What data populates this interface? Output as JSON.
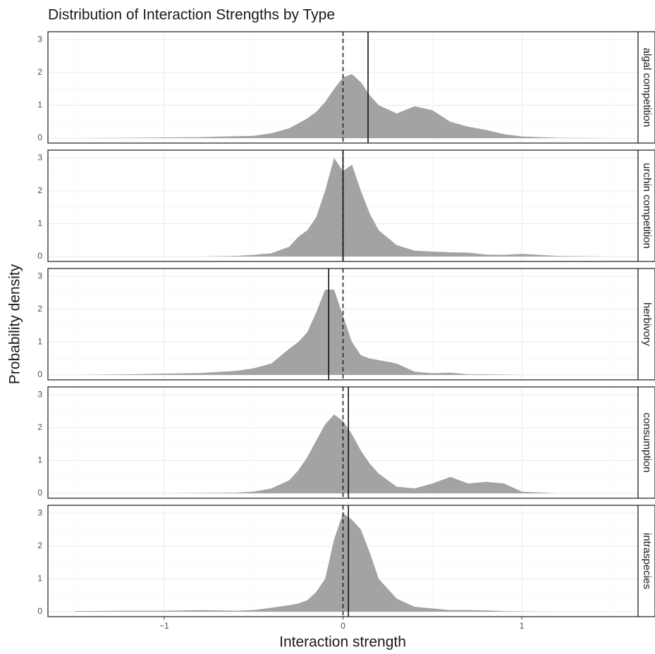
{
  "title": "Distribution of Interaction Strengths by Type",
  "x_label": "Interaction strength",
  "y_label": "Probability density",
  "chart_data": [
    {
      "type": "area",
      "strip": "algal competition",
      "color": "#a3a3a6",
      "x": [
        -1.5,
        -1.2,
        -1,
        -0.8,
        -0.6,
        -0.5,
        -0.4,
        -0.3,
        -0.25,
        -0.2,
        -0.15,
        -0.1,
        -0.05,
        0,
        0.05,
        0.1,
        0.15,
        0.2,
        0.3,
        0.4,
        0.5,
        0.6,
        0.7,
        0.8,
        0.9,
        1,
        1.2,
        1.5
      ],
      "values": [
        0,
        0.01,
        0.02,
        0.03,
        0.06,
        0.07,
        0.15,
        0.3,
        0.45,
        0.6,
        0.8,
        1.1,
        1.5,
        1.85,
        1.95,
        1.7,
        1.3,
        1.0,
        0.75,
        0.97,
        0.85,
        0.5,
        0.35,
        0.25,
        0.12,
        0.05,
        0.01,
        0
      ],
      "mean": 0.14,
      "reference": 0,
      "xlim": [
        -1.65,
        1.65
      ],
      "xticks": [
        {
          "value": -1,
          "label": "−1"
        },
        0,
        1
      ],
      "ylim": [
        -0.15,
        3.24
      ],
      "yticks": [
        0,
        1,
        2,
        3
      ],
      "grid": true
    },
    {
      "type": "area",
      "strip": "urchin competition",
      "color": "#a3a3a6",
      "x": [
        -1.5,
        -1.2,
        -1,
        -0.8,
        -0.6,
        -0.5,
        -0.4,
        -0.3,
        -0.25,
        -0.2,
        -0.15,
        -0.1,
        -0.05,
        0,
        0.05,
        0.1,
        0.15,
        0.2,
        0.3,
        0.4,
        0.5,
        0.6,
        0.7,
        0.8,
        0.9,
        1,
        1.2,
        1.5
      ],
      "values": [
        0,
        0,
        0,
        0,
        0.02,
        0.05,
        0.1,
        0.3,
        0.6,
        0.8,
        1.2,
        2.0,
        3.0,
        2.6,
        2.8,
        2.0,
        1.3,
        0.8,
        0.35,
        0.18,
        0.15,
        0.13,
        0.12,
        0.06,
        0.05,
        0.08,
        0.02,
        0
      ],
      "mean": 0.0,
      "reference": 0,
      "xlim": [
        -1.65,
        1.65
      ],
      "xticks": [
        {
          "value": -1,
          "label": "−1"
        },
        0,
        1
      ],
      "ylim": [
        -0.15,
        3.24
      ],
      "yticks": [
        0,
        1,
        2,
        3
      ],
      "grid": true
    },
    {
      "type": "area",
      "strip": "herbivory",
      "color": "#a3a3a6",
      "x": [
        -1.5,
        -1.2,
        -1,
        -0.8,
        -0.6,
        -0.5,
        -0.4,
        -0.3,
        -0.25,
        -0.2,
        -0.15,
        -0.1,
        -0.05,
        0,
        0.05,
        0.1,
        0.15,
        0.2,
        0.3,
        0.4,
        0.5,
        0.6,
        0.7,
        0.8,
        0.9,
        1,
        1.2,
        1.5
      ],
      "values": [
        0,
        0.02,
        0.04,
        0.06,
        0.12,
        0.2,
        0.35,
        0.8,
        1.0,
        1.3,
        1.9,
        2.6,
        2.6,
        1.8,
        1.0,
        0.6,
        0.5,
        0.45,
        0.35,
        0.1,
        0.05,
        0.07,
        0.02,
        0.02,
        0.01,
        0,
        0,
        0
      ],
      "mean": -0.08,
      "reference": 0,
      "xlim": [
        -1.65,
        1.65
      ],
      "xticks": [
        {
          "value": -1,
          "label": "−1"
        },
        0,
        1
      ],
      "ylim": [
        -0.15,
        3.24
      ],
      "yticks": [
        0,
        1,
        2,
        3
      ],
      "grid": true
    },
    {
      "type": "area",
      "strip": "consumption",
      "color": "#a3a3a6",
      "x": [
        -1.5,
        -1.2,
        -1,
        -0.8,
        -0.6,
        -0.5,
        -0.4,
        -0.3,
        -0.25,
        -0.2,
        -0.15,
        -0.1,
        -0.05,
        0,
        0.05,
        0.1,
        0.15,
        0.2,
        0.3,
        0.4,
        0.5,
        0.6,
        0.7,
        0.8,
        0.9,
        1,
        1.2,
        1.5
      ],
      "values": [
        0,
        0,
        0,
        0.01,
        0.02,
        0.05,
        0.15,
        0.4,
        0.7,
        1.1,
        1.6,
        2.1,
        2.4,
        2.2,
        1.8,
        1.3,
        0.9,
        0.6,
        0.2,
        0.15,
        0.3,
        0.5,
        0.3,
        0.35,
        0.3,
        0.05,
        0,
        0
      ],
      "mean": 0.03,
      "reference": 0,
      "xlim": [
        -1.65,
        1.65
      ],
      "xticks": [
        {
          "value": -1,
          "label": "−1"
        },
        0,
        1
      ],
      "ylim": [
        -0.15,
        3.24
      ],
      "yticks": [
        0,
        1,
        2,
        3
      ],
      "grid": true
    },
    {
      "type": "area",
      "strip": "intraspecies",
      "color": "#a3a3a6",
      "x": [
        -1.5,
        -1.2,
        -1,
        -0.8,
        -0.6,
        -0.5,
        -0.4,
        -0.3,
        -0.25,
        -0.2,
        -0.15,
        -0.1,
        -0.05,
        0,
        0.05,
        0.1,
        0.15,
        0.2,
        0.3,
        0.4,
        0.5,
        0.6,
        0.7,
        0.8,
        0.9,
        1,
        1.2,
        1.5
      ],
      "values": [
        0.02,
        0.03,
        0.03,
        0.05,
        0.03,
        0.05,
        0.12,
        0.2,
        0.25,
        0.35,
        0.6,
        1.0,
        2.2,
        3.0,
        2.8,
        2.5,
        1.8,
        1.0,
        0.4,
        0.15,
        0.1,
        0.05,
        0.05,
        0.04,
        0.02,
        0.01,
        0,
        0
      ],
      "mean": 0.03,
      "reference": 0,
      "xlim": [
        -1.65,
        1.65
      ],
      "xticks": [
        {
          "value": -1,
          "label": "−1"
        },
        0,
        1
      ],
      "ylim": [
        -0.15,
        3.24
      ],
      "yticks": [
        0,
        1,
        2,
        3
      ],
      "grid": true
    }
  ]
}
